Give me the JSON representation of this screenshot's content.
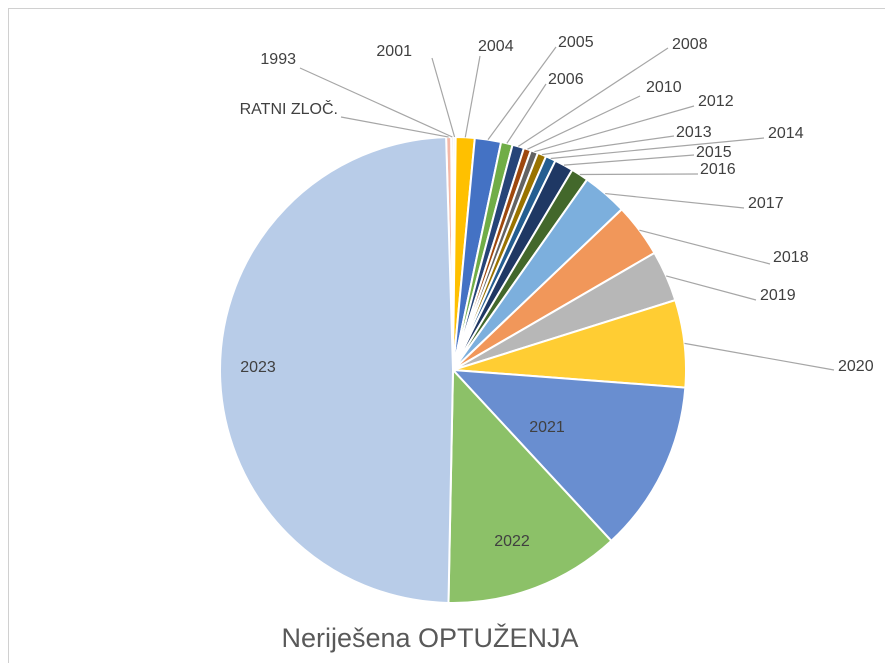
{
  "chart_data": {
    "type": "pie",
    "title": "Neriješena  OPTUŽENJA",
    "categories": [
      "RATNI ZLOČ.",
      "1993",
      "2001",
      "2004",
      "2005",
      "2006",
      "2008",
      "2010",
      "2012",
      "2013",
      "2014",
      "2015",
      "2016",
      "2017",
      "2018",
      "2019",
      "2020",
      "2021",
      "2022",
      "2023"
    ],
    "values": [
      0.35,
      0.15,
      0.15,
      1.3,
      1.8,
      0.8,
      0.8,
      0.5,
      0.5,
      0.6,
      0.7,
      1.3,
      1.2,
      3.1,
      3.7,
      3.5,
      6.0,
      11.8,
      12.1,
      48.8
    ],
    "colors": [
      "#F4B8A8",
      "#BFBFBF",
      "#E0C080",
      "#FFC000",
      "#4472C4",
      "#70AD47",
      "#264478",
      "#9E480E",
      "#636363",
      "#997300",
      "#255E91",
      "#1F3864",
      "#43682B",
      "#7CAFDD",
      "#F1975A",
      "#B7B7B7",
      "#FFCD33",
      "#698ED0",
      "#8CC168",
      "#B8CCE8"
    ]
  }
}
